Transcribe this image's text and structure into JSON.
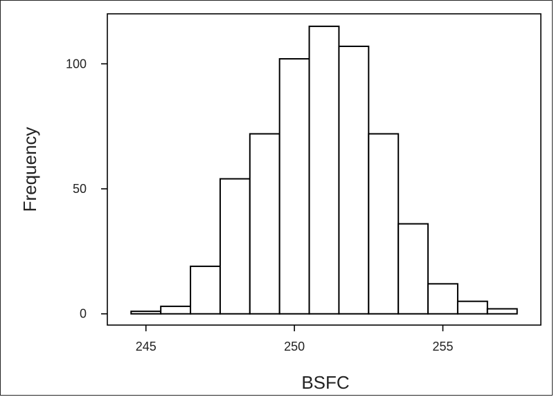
{
  "chart_data": {
    "type": "bar",
    "title": "",
    "xlabel": "BSFC",
    "ylabel": "Frequency",
    "bin_edges": [
      244.5,
      245.5,
      246.5,
      247.5,
      248.5,
      249.5,
      250.5,
      251.5,
      252.5,
      253.5,
      254.5,
      255.5,
      256.5,
      257.5
    ],
    "values": [
      1,
      3,
      19,
      54,
      72,
      102,
      115,
      107,
      72,
      36,
      12,
      5,
      2
    ],
    "xlim": [
      243.7,
      258.3
    ],
    "ylim": [
      -4.5,
      120
    ],
    "x_ticks": [
      245,
      250,
      255
    ],
    "y_ticks": [
      0,
      50,
      100
    ],
    "x_tick_labels": [
      "245",
      "250",
      "255"
    ],
    "y_tick_labels": [
      "0",
      "50",
      "100"
    ],
    "grid": false,
    "bar_fill": "#ffffff",
    "bar_stroke": "#000000"
  }
}
